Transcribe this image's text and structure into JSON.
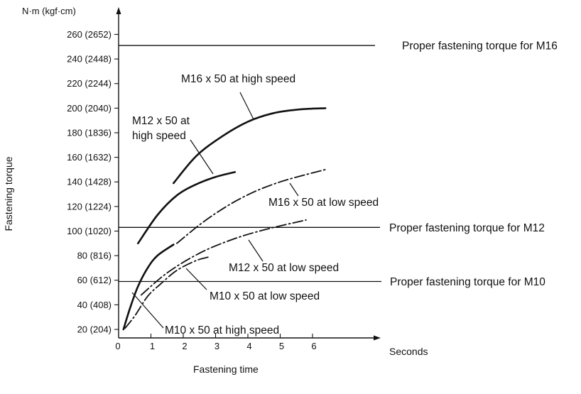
{
  "chart_data": {
    "type": "line",
    "xlabel": "Fastening time",
    "ylabel": "Fastening torque",
    "y_unit_label": "N·m (kgf·cm)",
    "x_unit_label": "Seconds",
    "xlim": [
      0,
      6.8
    ],
    "ylim": [
      0,
      270
    ],
    "x_ticks": [
      "0",
      "1",
      "2",
      "3",
      "4",
      "5",
      "6"
    ],
    "y_ticks": [
      "20 (204)",
      "40 (408)",
      "60 (612)",
      "80 (816)",
      "100 (1020)",
      "120 (1224)",
      "140 (1428)",
      "160 (1632)",
      "180 (1836)",
      "200 (2040)",
      "220 (2244)",
      "240 (2448)",
      "260 (2652)"
    ],
    "reference_lines": [
      {
        "label": "Proper fastening torque for M16",
        "y": 251
      },
      {
        "label": "Proper fastening torque for M12",
        "y": 103
      },
      {
        "label": "Proper fastening torque for M10",
        "y": 59
      }
    ],
    "series": [
      {
        "name": "M16 x 50 at high speed",
        "style": "solid",
        "x": [
          1.7,
          2.4,
          3.2,
          4.0,
          4.8,
          5.6,
          6.4
        ],
        "y": [
          139,
          161,
          177,
          189,
          196,
          199,
          200
        ]
      },
      {
        "name": "M12 x 50 at high speed",
        "style": "solid",
        "x": [
          0.6,
          1.2,
          1.8,
          2.4,
          3.0,
          3.6
        ],
        "y": [
          90,
          113,
          129,
          138,
          144,
          148
        ]
      },
      {
        "name": "M16 x 50 at low speed",
        "style": "dashdot",
        "x": [
          1.8,
          2.6,
          3.4,
          4.2,
          5.0,
          5.8,
          6.4
        ],
        "y": [
          90,
          107,
          121,
          132,
          140,
          146,
          150
        ]
      },
      {
        "name": "M12 x 50 at low speed",
        "style": "dashdot",
        "x": [
          0.7,
          1.5,
          2.5,
          3.5,
          4.5,
          5.8
        ],
        "y": [
          48,
          66,
          82,
          93,
          101,
          109
        ]
      },
      {
        "name": "M10 x 50 at high speed",
        "style": "solid",
        "x": [
          0.15,
          0.35,
          0.6,
          0.9,
          1.2,
          1.7
        ],
        "y": [
          20,
          37,
          55,
          70,
          80,
          89
        ]
      },
      {
        "name": "M10 x 50 at low speed",
        "style": "dashdot",
        "x": [
          0.2,
          0.5,
          0.9,
          1.3,
          1.8,
          2.4,
          2.8
        ],
        "y": [
          21,
          31,
          47,
          57,
          68,
          76,
          79
        ]
      }
    ],
    "annotations": [
      {
        "lines": [
          "M16 x 50 at high speed"
        ]
      },
      {
        "lines": [
          "M12 x 50 at",
          "high speed"
        ]
      },
      {
        "lines": [
          "M16 x 50 at low speed"
        ]
      },
      {
        "lines": [
          "M12 x 50 at low speed"
        ]
      },
      {
        "lines": [
          "M10 x 50 at low speed"
        ]
      },
      {
        "lines": [
          "M10 x 50 at high speed"
        ]
      }
    ],
    "grid": false,
    "legend": "none"
  }
}
